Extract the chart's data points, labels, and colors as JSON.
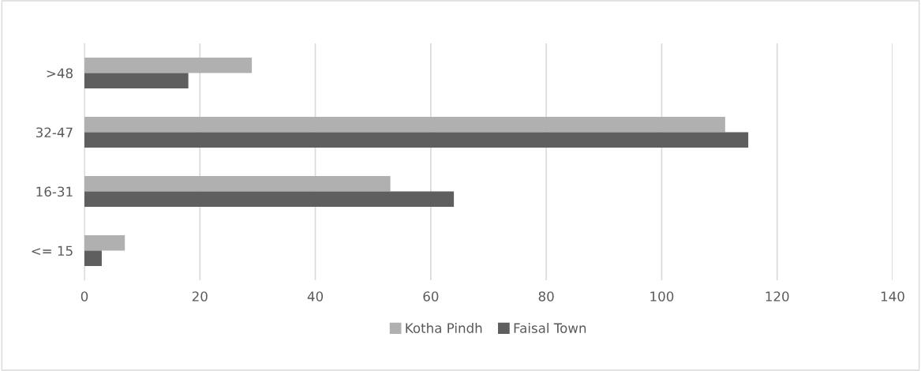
{
  "chart_data": {
    "type": "bar",
    "orientation": "horizontal",
    "categories": [
      ">48",
      "32-47",
      "16-31",
      "<= 15"
    ],
    "series": [
      {
        "name": "Kotha Pindh",
        "color": "#b0b0b0",
        "values": [
          29,
          111,
          53,
          7
        ]
      },
      {
        "name": "Faisal Town",
        "color": "#5f5f5f",
        "values": [
          18,
          115,
          64,
          3
        ]
      }
    ],
    "xlim": [
      0,
      140
    ],
    "xticks": [
      0,
      20,
      40,
      60,
      80,
      100,
      120,
      140
    ],
    "grid": "x",
    "legend": "bottom"
  }
}
